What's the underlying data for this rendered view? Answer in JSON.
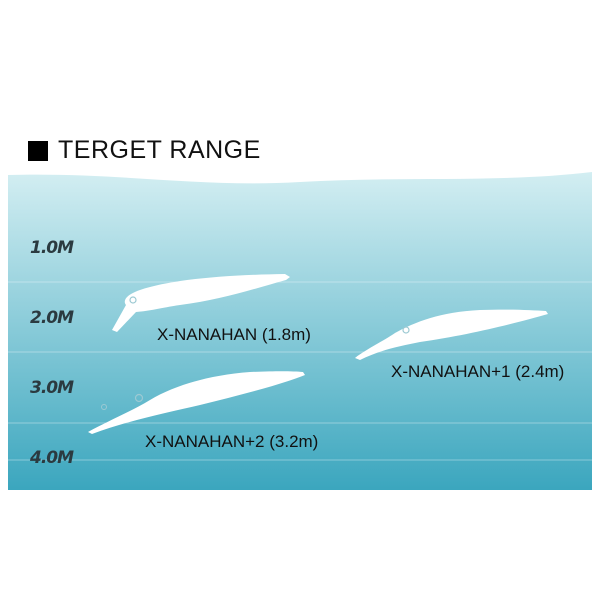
{
  "title": "TERGET RANGE",
  "depth_labels": [
    "1.0M",
    "2.0M",
    "3.0M",
    "4.0M"
  ],
  "lures": [
    {
      "name": "X-NANAHAN (1.8m)"
    },
    {
      "name": "X-NANAHAN+1 (2.4m)"
    },
    {
      "name": "X-NANAHAN+2 (3.2m)"
    }
  ],
  "colors": {
    "water_top": "#d3eef2",
    "water_bottom": "#3ba6be",
    "lure": "#ffffff"
  }
}
